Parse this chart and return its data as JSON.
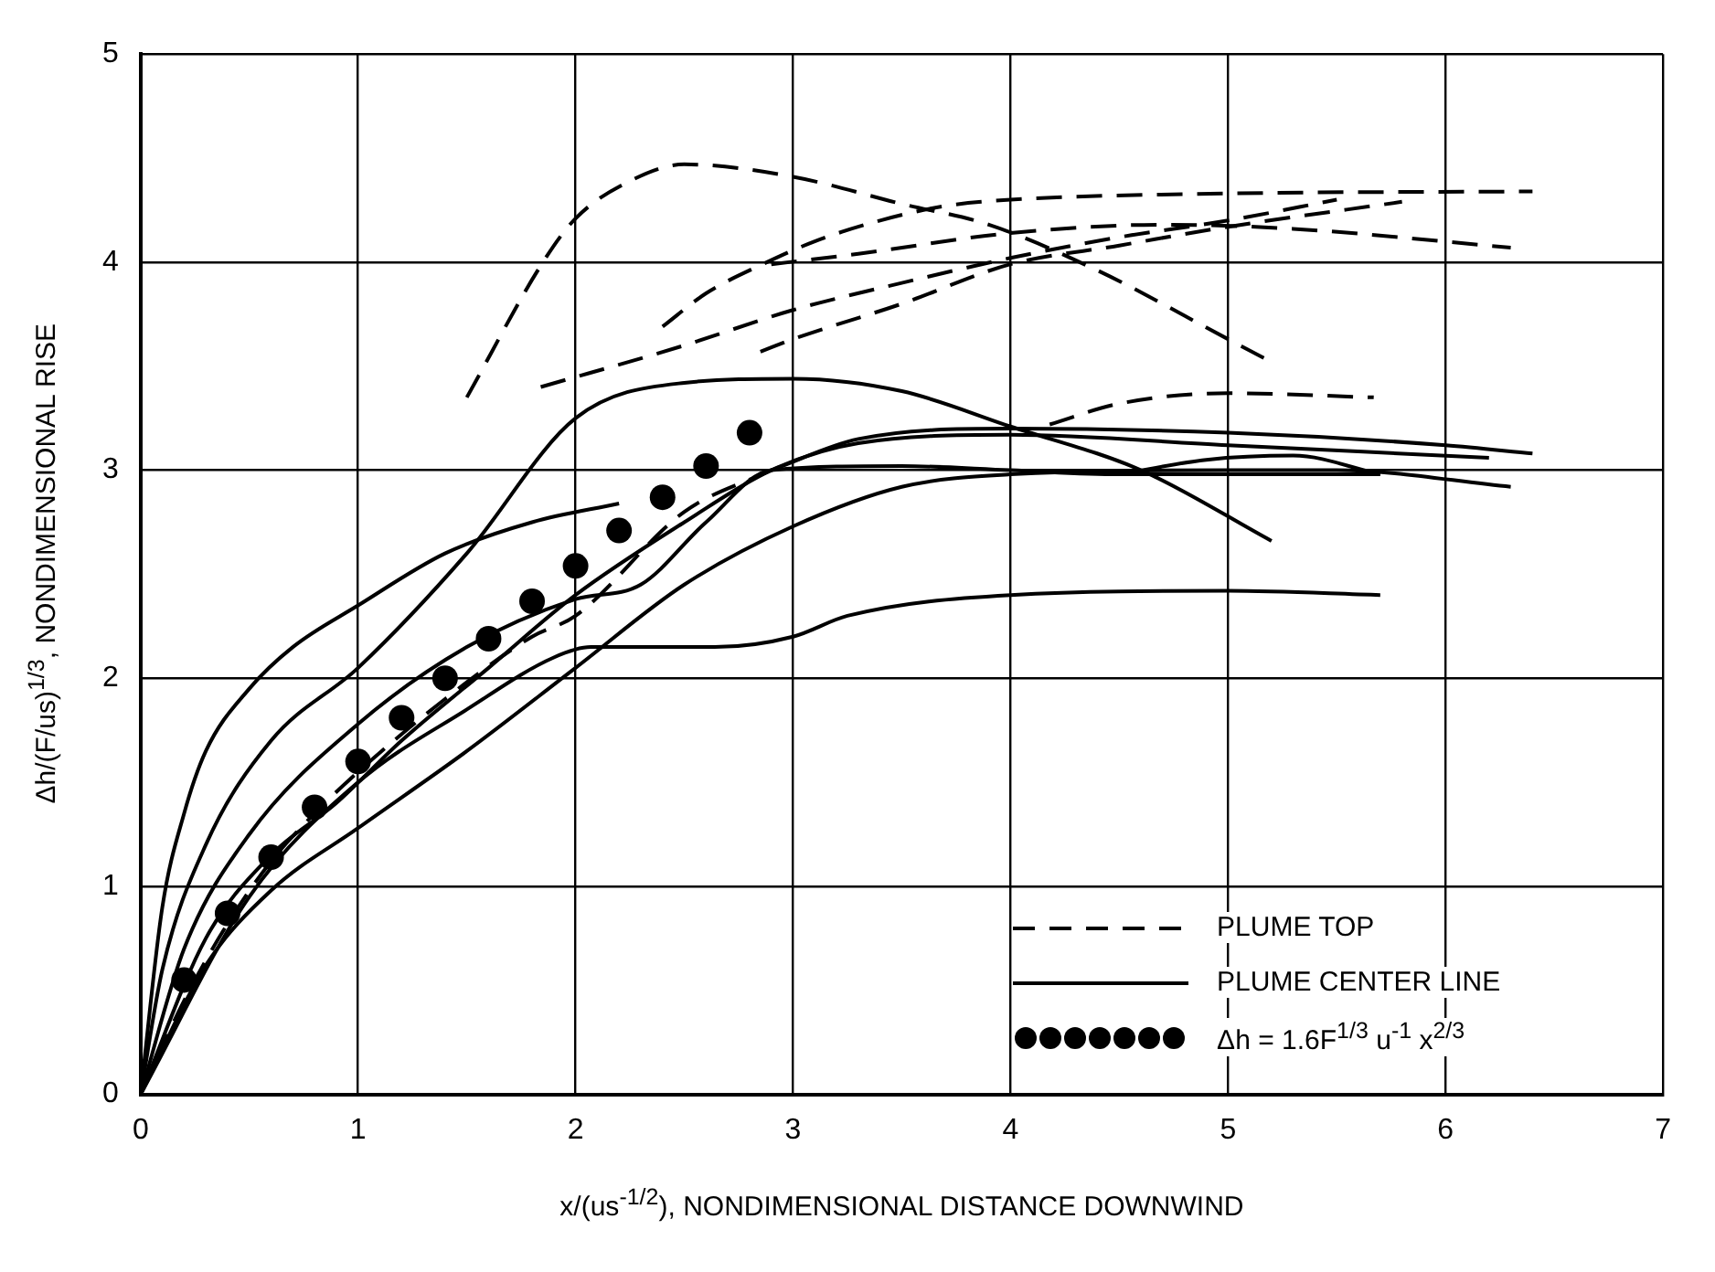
{
  "chart_data": {
    "type": "line",
    "xlabel": "x/(us$^{-1/2}$), NONDIMENSIONAL DISTANCE DOWNWIND",
    "ylabel": "Δh/(F/us)$^{1/3}$, NONDIMENSIONAL RISE",
    "xlim": [
      0,
      7
    ],
    "ylim": [
      0,
      5
    ],
    "xticks": [
      0,
      1,
      2,
      3,
      4,
      5,
      6,
      7
    ],
    "yticks": [
      0,
      1,
      2,
      3,
      4,
      5
    ],
    "grid": true,
    "legend": "bottom right",
    "series": [
      {
        "name": "PLUME TOP",
        "color": "#000000",
        "line_style": "dashed",
        "x": [
          1.5,
          1.85,
          2.0,
          2.25,
          2.5,
          3.0,
          3.5,
          3.9,
          4.4,
          5.0,
          5.2
        ],
        "values": [
          3.35,
          4.0,
          4.21,
          4.39,
          4.47,
          4.41,
          4.28,
          4.18,
          3.96,
          3.63,
          3.52
        ]
      },
      {
        "color": "#000000",
        "line_style": "dashed",
        "x": [
          2.4,
          2.6,
          2.86,
          3.1,
          3.4,
          3.7,
          4.0,
          5.0,
          6.4
        ],
        "values": [
          3.69,
          3.85,
          3.99,
          4.1,
          4.2,
          4.27,
          4.3,
          4.33,
          4.34
        ]
      },
      {
        "color": "#000000",
        "line_style": "dashed",
        "x": [
          1.84,
          2.5,
          3.0,
          3.5,
          4.0,
          4.5,
          5.0,
          5.5
        ],
        "values": [
          3.4,
          3.6,
          3.77,
          3.9,
          4.02,
          4.12,
          4.2,
          4.3
        ]
      },
      {
        "color": "#000000",
        "line_style": "dashed",
        "x": [
          2.85,
          3.0,
          3.5,
          4.0,
          4.5,
          5.0,
          5.8
        ],
        "values": [
          3.57,
          3.63,
          3.8,
          3.99,
          4.08,
          4.17,
          4.29
        ]
      },
      {
        "color": "#000000",
        "line_style": "dashed",
        "x": [
          2.9,
          3.3,
          4.0,
          4.7,
          5.3,
          6.3
        ],
        "values": [
          3.99,
          4.04,
          4.14,
          4.18,
          4.16,
          4.07
        ]
      },
      {
        "color": "#000000",
        "line_style": "dashed",
        "x": [
          4.18,
          4.5,
          5.0,
          5.67
        ],
        "values": [
          3.22,
          3.32,
          3.37,
          3.35
        ]
      },
      {
        "color": "#000000",
        "line_style": "dashed",
        "x": [
          0,
          0.2,
          0.4,
          0.6,
          0.8,
          1.0,
          1.4,
          1.8,
          2.0,
          2.5,
          2.9
        ],
        "values": [
          0,
          0.45,
          0.82,
          1.12,
          1.35,
          1.55,
          1.9,
          2.2,
          2.3,
          2.8,
          3.0
        ]
      },
      {
        "name": "PLUME CENTER LINE",
        "color": "#000000",
        "line_style": "solid",
        "x": [
          0,
          0.1,
          0.2,
          0.3,
          0.5,
          0.7,
          1.0,
          1.4,
          1.8,
          2.2
        ],
        "values": [
          0,
          0.9,
          1.35,
          1.65,
          1.95,
          2.15,
          2.35,
          2.6,
          2.75,
          2.84
        ]
      },
      {
        "color": "#000000",
        "line_style": "solid",
        "x": [
          0,
          0.1,
          0.3,
          0.6,
          1.0,
          1.5,
          2.0,
          2.5,
          3.0,
          3.5,
          4.0,
          4.6,
          5.2
        ],
        "values": [
          0,
          0.6,
          1.2,
          1.7,
          2.05,
          2.6,
          3.25,
          3.42,
          3.44,
          3.38,
          3.21,
          3.0,
          2.66
        ]
      },
      {
        "color": "#000000",
        "line_style": "solid",
        "x": [
          0,
          0.2,
          0.5,
          1.0,
          1.5,
          2.0,
          2.3,
          2.6,
          2.9,
          3.5,
          4.0,
          4.5,
          5.0,
          5.7
        ],
        "values": [
          0,
          0.7,
          1.25,
          1.78,
          2.15,
          2.38,
          2.45,
          2.75,
          3.0,
          3.02,
          3.0,
          2.98,
          2.98,
          2.98
        ]
      },
      {
        "color": "#000000",
        "line_style": "solid",
        "x": [
          0,
          0.5,
          1.0,
          1.5,
          1.9,
          2.07,
          2.64,
          3.0,
          3.25,
          4.0,
          5.0,
          5.7
        ],
        "values": [
          0,
          0.95,
          1.5,
          1.85,
          2.1,
          2.15,
          2.15,
          2.2,
          2.3,
          2.4,
          2.42,
          2.4
        ]
      },
      {
        "color": "#000000",
        "line_style": "solid",
        "x": [
          0,
          0.3,
          0.6,
          1.0,
          1.5,
          2.0,
          2.5,
          3.0,
          3.5,
          4.0,
          5.0,
          5.5,
          6.3
        ],
        "values": [
          0,
          0.62,
          0.98,
          1.28,
          1.65,
          2.05,
          2.45,
          2.73,
          2.92,
          2.98,
          3.0,
          3.0,
          2.92
        ]
      },
      {
        "color": "#000000",
        "line_style": "solid",
        "x": [
          0,
          0.3,
          0.6,
          0.9,
          1.2,
          1.6,
          2.0,
          2.5,
          2.9,
          3.3,
          4.0,
          5.0,
          6.2
        ],
        "values": [
          0,
          0.75,
          1.15,
          1.4,
          1.7,
          2.05,
          2.4,
          2.75,
          3.0,
          3.13,
          3.17,
          3.12,
          3.06
        ]
      },
      {
        "color": "#000000",
        "line_style": "solid",
        "x": [
          2.9,
          3.3,
          4.0,
          5.0,
          6.0,
          6.4
        ],
        "values": [
          3.0,
          3.15,
          3.2,
          3.18,
          3.12,
          3.08
        ]
      },
      {
        "color": "#000000",
        "line_style": "solid",
        "x": [
          4.5,
          4.9,
          5.3,
          5.7
        ],
        "values": [
          2.98,
          3.05,
          3.07,
          2.98
        ]
      },
      {
        "name": "Δh = 1.6F$^{1/3}$ u$^{-1}$ x$^{2/3}$",
        "type": "scatter",
        "marker": "circle",
        "color": "#000000",
        "x": [
          0.2,
          0.4,
          0.6,
          0.8,
          1.0,
          1.2,
          1.4,
          1.6,
          1.8,
          2.0,
          2.2,
          2.4,
          2.6,
          2.8
        ],
        "values": [
          0.55,
          0.87,
          1.14,
          1.38,
          1.6,
          1.81,
          2.0,
          2.19,
          2.37,
          2.54,
          2.71,
          2.87,
          3.02,
          3.18
        ]
      }
    ]
  }
}
